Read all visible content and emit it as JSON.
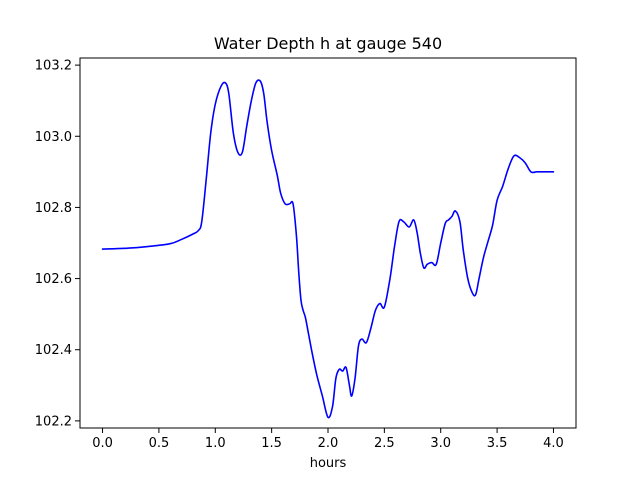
{
  "chart_data": {
    "type": "line",
    "title": "Water Depth h at gauge 540",
    "xlabel": "hours",
    "ylabel": "",
    "xlim": [
      -0.2,
      4.2
    ],
    "ylim": [
      102.18,
      103.22
    ],
    "grid": false,
    "xticks": [
      0.0,
      0.5,
      1.0,
      1.5,
      2.0,
      2.5,
      3.0,
      3.5,
      4.0
    ],
    "xtick_labels": [
      "0.0",
      "0.5",
      "1.0",
      "1.5",
      "2.0",
      "2.5",
      "3.0",
      "3.5",
      "4.0"
    ],
    "yticks": [
      102.2,
      102.4,
      102.6,
      102.8,
      103.0,
      103.2
    ],
    "ytick_labels": [
      "102.2",
      "102.4",
      "102.6",
      "102.8",
      "103.0",
      "103.2"
    ],
    "series": [
      {
        "color": "#0000ff",
        "x": [
          0.0,
          0.2,
          0.4,
          0.6,
          0.7,
          0.8,
          0.85,
          0.88,
          0.92,
          0.96,
          1.0,
          1.05,
          1.09,
          1.12,
          1.16,
          1.2,
          1.24,
          1.28,
          1.32,
          1.36,
          1.4,
          1.43,
          1.46,
          1.5,
          1.55,
          1.58,
          1.62,
          1.66,
          1.69,
          1.72,
          1.74,
          1.76,
          1.78,
          1.8,
          1.83,
          1.86,
          1.9,
          1.95,
          2.0,
          2.04,
          2.07,
          2.1,
          2.13,
          2.16,
          2.19,
          2.21,
          2.24,
          2.27,
          2.3,
          2.34,
          2.38,
          2.42,
          2.46,
          2.5,
          2.55,
          2.59,
          2.63,
          2.67,
          2.72,
          2.76,
          2.79,
          2.82,
          2.85,
          2.88,
          2.92,
          2.96,
          3.0,
          3.04,
          3.07,
          3.1,
          3.13,
          3.17,
          3.2,
          3.24,
          3.28,
          3.31,
          3.34,
          3.38,
          3.42,
          3.46,
          3.5,
          3.55,
          3.6,
          3.65,
          3.7,
          3.75,
          3.8,
          3.85,
          3.9,
          3.95,
          4.0
        ],
        "y": [
          102.683,
          102.685,
          102.69,
          102.698,
          102.71,
          102.725,
          102.735,
          102.76,
          102.88,
          103.01,
          103.09,
          103.14,
          103.15,
          103.12,
          103.01,
          102.955,
          102.955,
          103.03,
          103.1,
          103.15,
          103.155,
          103.12,
          103.04,
          102.96,
          102.89,
          102.84,
          102.81,
          102.81,
          102.81,
          102.72,
          102.62,
          102.54,
          102.51,
          102.49,
          102.44,
          102.39,
          102.33,
          102.27,
          102.21,
          102.24,
          102.32,
          102.345,
          102.34,
          102.35,
          102.3,
          102.27,
          102.32,
          102.41,
          102.43,
          102.42,
          102.46,
          102.51,
          102.53,
          102.52,
          102.6,
          102.69,
          102.76,
          102.76,
          102.745,
          102.765,
          102.73,
          102.67,
          102.63,
          102.64,
          102.645,
          102.64,
          102.7,
          102.755,
          102.765,
          102.775,
          102.79,
          102.76,
          102.68,
          102.6,
          102.56,
          102.555,
          102.6,
          102.66,
          102.705,
          102.75,
          102.82,
          102.86,
          102.91,
          102.945,
          102.94,
          102.925,
          102.9,
          102.9,
          102.9,
          102.9,
          102.9
        ]
      }
    ]
  }
}
